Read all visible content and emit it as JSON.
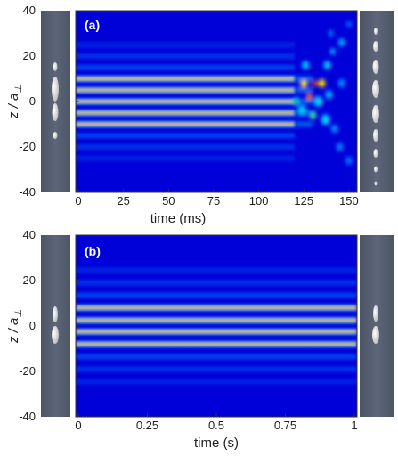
{
  "chart_data": [
    {
      "type": "heatmap",
      "panel_label": "(a)",
      "xlabel": "time (ms)",
      "ylabel_main": "z / a",
      "ylabel_sub": "⊥",
      "xlim": [
        0,
        153
      ],
      "ylim": [
        -40,
        40
      ],
      "x_ticks": [
        "0",
        "25",
        "50",
        "75",
        "100",
        "125",
        "150"
      ],
      "x_tick_values": [
        0,
        25,
        50,
        75,
        100,
        125,
        150
      ],
      "y_ticks": [
        "40",
        "20",
        "0",
        "-20",
        "-40"
      ],
      "y_tick_values": [
        40,
        20,
        0,
        -20,
        -40
      ],
      "bands_z": [
        -10,
        -5,
        0,
        5,
        10
      ],
      "collapse_time": 120,
      "grid": false
    },
    {
      "type": "heatmap",
      "panel_label": "(b)",
      "xlabel": "time (s)",
      "ylabel_main": "z / a",
      "ylabel_sub": "⊥",
      "xlim": [
        0,
        1
      ],
      "ylim": [
        -40,
        40
      ],
      "x_ticks": [
        "0",
        "0.25",
        "0.5",
        "0.75",
        "1"
      ],
      "x_tick_values": [
        0,
        0.25,
        0.5,
        0.75,
        1
      ],
      "y_ticks": [
        "40",
        "20",
        "0",
        "-20",
        "-40"
      ],
      "y_tick_values": [
        40,
        20,
        0,
        -20,
        -40
      ],
      "bands_z": [
        -8,
        -2.5,
        2.5,
        8
      ],
      "grid": false
    }
  ],
  "colors": {
    "background": "#0000d8",
    "side_panel": "#555e6e",
    "density_blob": "#e8e8e8"
  }
}
